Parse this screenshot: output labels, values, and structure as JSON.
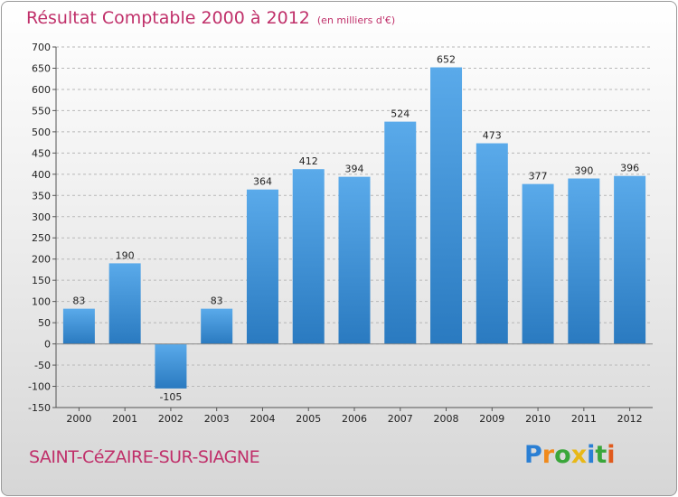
{
  "title": "Résultat Comptable 2000 à 2012",
  "subtitle": "(en milliers d'€)",
  "city": "SAINT-CéZAIRE-SUR-SIAGNE",
  "logo": {
    "letters": [
      "P",
      "r",
      "o",
      "x",
      "i",
      "t",
      "i"
    ],
    "colors": [
      "#2a7fd4",
      "#f08a1c",
      "#3aa63a",
      "#e8b817",
      "#2a7fd4",
      "#3aa63a",
      "#e05a1c"
    ]
  },
  "colors": {
    "bar_top": "#5aaaea",
    "bar_bottom": "#2a7ac0",
    "title": "#c0306a",
    "grid": "#b8b8b8"
  },
  "chart_data": {
    "type": "bar",
    "title": "Résultat Comptable 2000 à 2012",
    "subtitle": "(en milliers d'€)",
    "categories": [
      "2000",
      "2001",
      "2002",
      "2003",
      "2004",
      "2005",
      "2006",
      "2007",
      "2008",
      "2009",
      "2010",
      "2011",
      "2012"
    ],
    "values": [
      83,
      190,
      -105,
      83,
      364,
      412,
      394,
      524,
      652,
      473,
      377,
      390,
      396
    ],
    "labels": [
      "83",
      "190",
      "-105",
      "83",
      "364",
      "412",
      "394",
      "524",
      "652",
      "473",
      "377",
      "390",
      "396"
    ],
    "ylim": [
      -150,
      700
    ],
    "yticks": [
      -150,
      -100,
      -50,
      0,
      50,
      100,
      150,
      200,
      250,
      300,
      350,
      400,
      450,
      500,
      550,
      600,
      650,
      700
    ],
    "xlabel": "",
    "ylabel": "",
    "grid": true
  }
}
